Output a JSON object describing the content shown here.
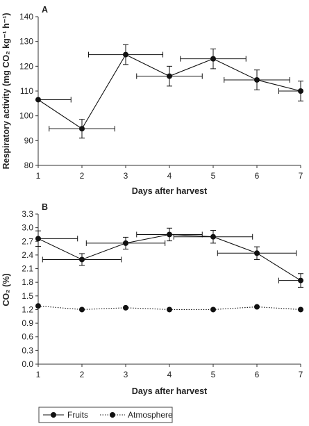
{
  "chart_data": [
    {
      "panel_label": "A",
      "type": "line",
      "x": [
        1,
        2,
        3,
        4,
        5,
        6,
        7
      ],
      "xlabel": "Days after harvest",
      "ylabel": "Respiratory activity (mg CO₂ kg⁻¹ h⁻¹)",
      "xlim": [
        1,
        7
      ],
      "ylim": [
        80,
        140
      ],
      "xticks": [
        1,
        2,
        3,
        4,
        5,
        6,
        7
      ],
      "yticks": [
        80,
        90,
        100,
        110,
        120,
        130,
        140
      ],
      "grid": false,
      "series": [
        {
          "name": "Fruits",
          "values": [
            106.5,
            94.8,
            124.7,
            116,
            123,
            114.5,
            110
          ],
          "y_error": [
            0,
            3.8,
            4,
            4,
            4,
            4,
            4
          ],
          "x_error": [
            0.75,
            0.75,
            0.85,
            0.75,
            0.75,
            0.75,
            0.5
          ],
          "marker": "circle-filled",
          "line": "solid"
        }
      ]
    },
    {
      "panel_label": "B",
      "type": "line",
      "x": [
        1,
        2,
        3,
        4,
        5,
        6,
        7
      ],
      "xlabel": "Days after harvest",
      "ylabel": "CO₂ (%)",
      "xlim": [
        1,
        7
      ],
      "ylim": [
        0,
        3.3
      ],
      "xticks": [
        1,
        2,
        3,
        4,
        5,
        6,
        7
      ],
      "yticks": [
        "0.0",
        "0.3",
        "0.6",
        "0.9",
        "1.2",
        "1.5",
        "1.8",
        "2.1",
        "2.4",
        "2.7",
        "3.0",
        "3.3"
      ],
      "grid": false,
      "series": [
        {
          "name": "Fruits",
          "values": [
            2.76,
            2.3,
            2.66,
            2.85,
            2.8,
            2.44,
            1.84
          ],
          "y_error": [
            0.17,
            0.13,
            0.13,
            0.14,
            0.14,
            0.14,
            0.15
          ],
          "x_error": [
            0.9,
            0.9,
            0.9,
            0.75,
            0.9,
            0.9,
            0.5
          ],
          "marker": "circle-filled",
          "line": "solid"
        },
        {
          "name": "Atmosphere",
          "values": [
            1.28,
            1.2,
            1.24,
            1.2,
            1.2,
            1.26,
            1.2
          ],
          "marker": "circle-filled",
          "line": "dotted"
        }
      ],
      "legend": "bottom",
      "colors": {
        "fruits": "#111111",
        "atmosphere": "#111111"
      }
    }
  ],
  "legend": {
    "items": [
      "Fruits",
      "Atmosphere"
    ]
  }
}
